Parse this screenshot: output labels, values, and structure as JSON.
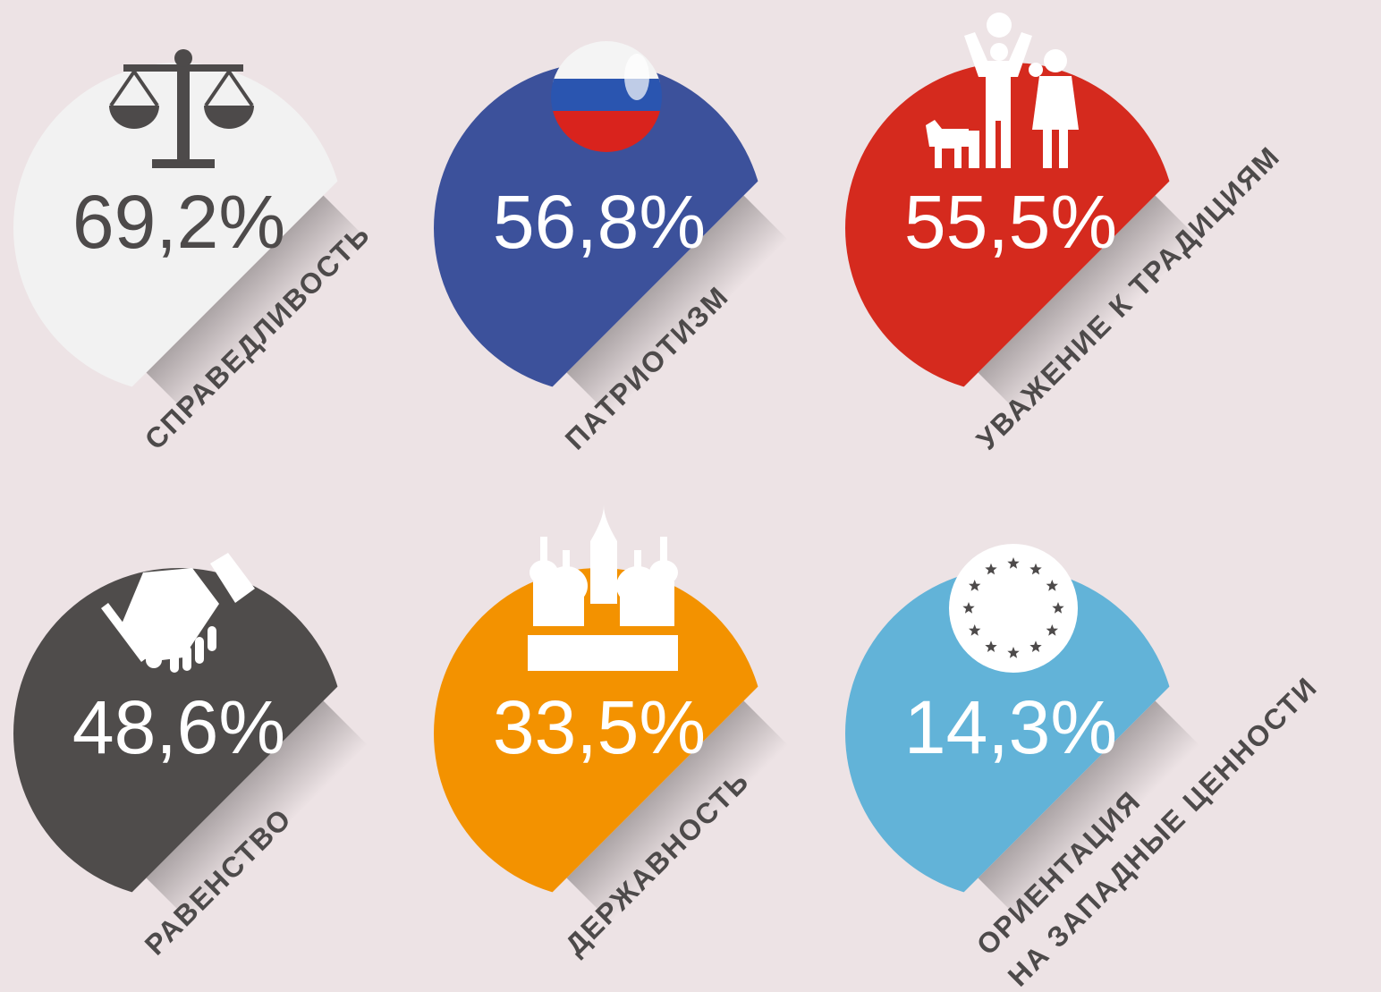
{
  "items": [
    {
      "value": "69,2%",
      "label": [
        "СПРАВЕДЛИВОСТЬ"
      ],
      "color": "#f2f2f2",
      "text_color": "#4d4a4a"
    },
    {
      "value": "56,8%",
      "label": [
        "ПАТРИОТИЗМ"
      ],
      "color": "#3c519b",
      "text_color": "#ffffff"
    },
    {
      "value": "55,5%",
      "label": [
        "УВАЖЕНИЕ К ТРАДИЦИЯМ"
      ],
      "color": "#d52a1e",
      "text_color": "#ffffff"
    },
    {
      "value": "48,6%",
      "label": [
        "РАВЕНСТВО"
      ],
      "color": "#4f4c4b",
      "text_color": "#ffffff"
    },
    {
      "value": "33,5%",
      "label": [
        "ДЕРЖАВНОСТЬ"
      ],
      "color": "#f39200",
      "text_color": "#ffffff"
    },
    {
      "value": "14,3%",
      "label": [
        "ОРИЕНТАЦИЯ",
        "НА ЗАПАДНЫЕ ЦЕННОСТИ"
      ],
      "color": "#62b3d8",
      "text_color": "#ffffff"
    }
  ]
}
